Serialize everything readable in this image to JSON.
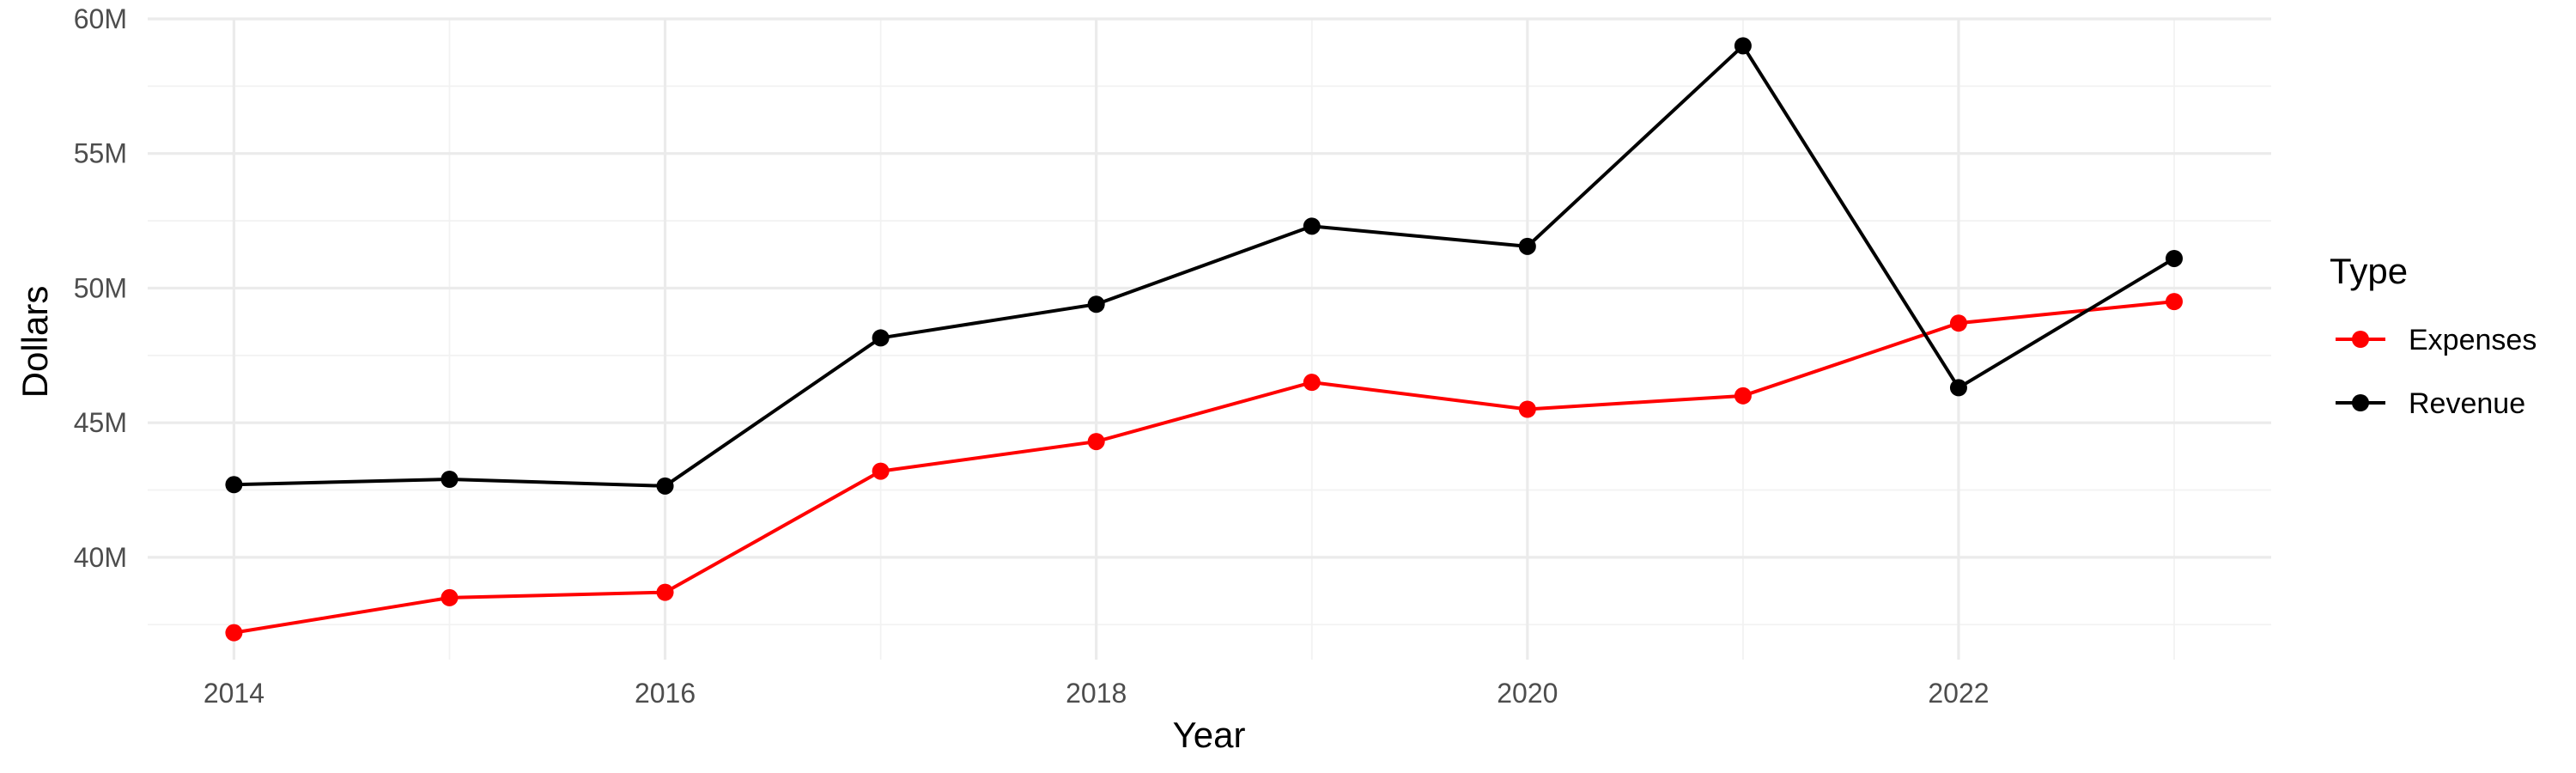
{
  "chart_data": {
    "type": "line",
    "title": "",
    "xlabel": "Year",
    "ylabel": "Dollars",
    "x": [
      2014,
      2015,
      2016,
      2017,
      2018,
      2019,
      2020,
      2021,
      2022,
      2023
    ],
    "xlim": [
      2013.6,
      2023.45
    ],
    "ylim": [
      36200000,
      60000000
    ],
    "x_ticks": [
      2014,
      2016,
      2018,
      2020,
      2022
    ],
    "x_tick_labels": [
      "2014",
      "2016",
      "2018",
      "2020",
      "2022"
    ],
    "y_ticks": [
      40000000,
      45000000,
      50000000,
      55000000,
      60000000
    ],
    "y_tick_labels": [
      "40M",
      "45M",
      "50M",
      "55M",
      "60M"
    ],
    "grid": true,
    "legend": {
      "title": "Type",
      "placement": "right"
    },
    "series": [
      {
        "name": "Expenses",
        "color": "#ff0000",
        "values": [
          37200000,
          38500000,
          38700000,
          43200000,
          44300000,
          46500000,
          45500000,
          46000000,
          48700000,
          49500000
        ]
      },
      {
        "name": "Revenue",
        "color": "#000000",
        "values": [
          42700000,
          42900000,
          42650000,
          48150000,
          49400000,
          52300000,
          51550000,
          59000000,
          46300000,
          51100000
        ]
      }
    ]
  }
}
